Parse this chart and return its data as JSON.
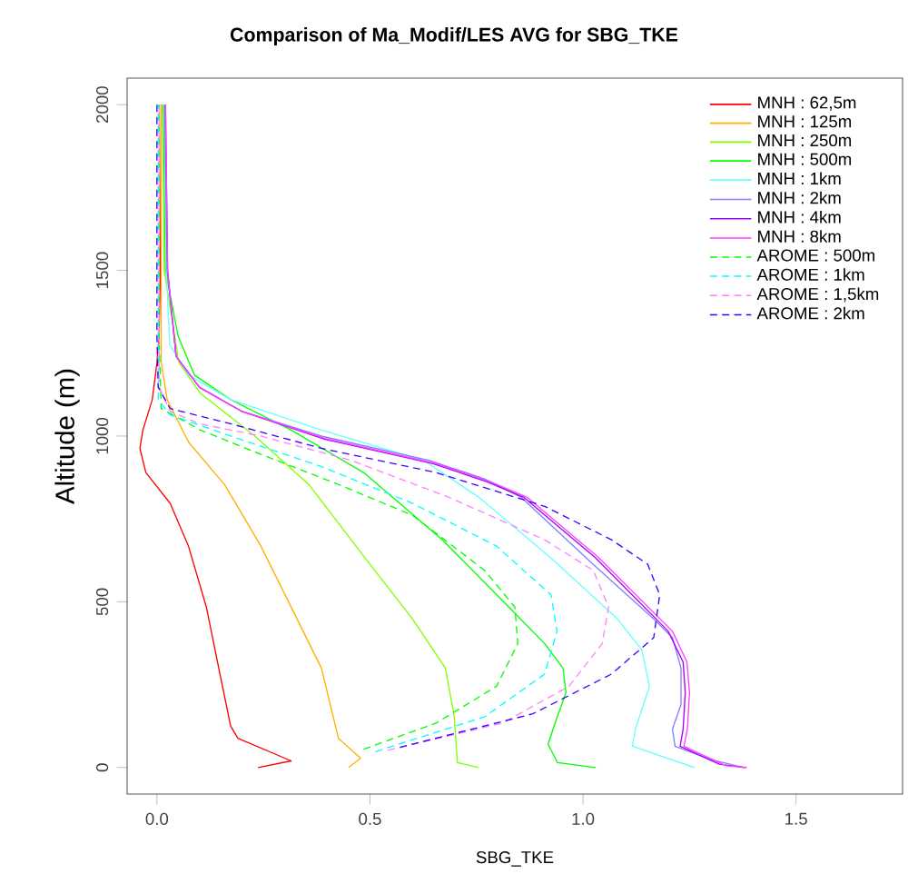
{
  "chart_data": {
    "type": "line",
    "title": "Comparison of Ma_Modif/LES AVG  for SBG_TKE",
    "xlabel": "SBG_TKE",
    "ylabel": "Altitude (m)",
    "xlim": [
      -0.07,
      1.75
    ],
    "ylim": [
      -80,
      2080
    ],
    "xticks": [
      {
        "value": 0,
        "label": "0.0"
      },
      {
        "value": 0.5,
        "label": "0.5"
      },
      {
        "value": 1,
        "label": "1.0"
      },
      {
        "value": 1.5,
        "label": "1.5"
      }
    ],
    "yticks": [
      0,
      500,
      1000,
      1500,
      2000
    ],
    "legend": "top right",
    "marker": "none",
    "grid": false,
    "series": [
      {
        "name": "MNH : 62,5m",
        "color": "#ff0000",
        "line_style": "solid",
        "x": [
          0.237,
          0.315,
          0.19,
          0.173,
          0.145,
          0.116,
          0.074,
          0.031,
          -0.026,
          -0.04,
          -0.033,
          -0.011,
          0.0,
          0.005,
          0.008,
          0.01
        ],
        "values": [
          0,
          20,
          88,
          125,
          300,
          484,
          668,
          797,
          890,
          963,
          1018,
          1110,
          1221,
          1300,
          1500,
          2000
        ]
      },
      {
        "name": "MNH : 125m",
        "color": "#ffb000",
        "line_style": "solid",
        "x": [
          0.45,
          0.478,
          0.426,
          0.386,
          0.315,
          0.244,
          0.159,
          0.074,
          0.024,
          0.01,
          0.01
        ],
        "values": [
          0,
          28,
          88,
          300,
          484,
          668,
          853,
          982,
          1110,
          1221,
          2000
        ]
      },
      {
        "name": "MNH : 250m",
        "color": "#80ff00",
        "line_style": "solid",
        "x": [
          0.755,
          0.705,
          0.698,
          0.677,
          0.6,
          0.5,
          0.357,
          0.23,
          0.102,
          0.052,
          0.045,
          0.017,
          0.013
        ],
        "values": [
          0,
          15,
          153,
          300,
          448,
          613,
          853,
          1000,
          1129,
          1221,
          1273,
          1500,
          2000
        ]
      },
      {
        "name": "MNH : 500m",
        "color": "#00ff00",
        "line_style": "solid",
        "x": [
          1.03,
          0.94,
          0.918,
          0.932,
          0.96,
          0.953,
          0.91,
          0.826,
          0.67,
          0.485,
          0.315,
          0.173,
          0.088,
          0.05,
          0.02,
          0.015
        ],
        "values": [
          0,
          15,
          70,
          125,
          226,
          300,
          374,
          484,
          687,
          890,
          1018,
          1110,
          1184,
          1300,
          1500,
          2000
        ]
      },
      {
        "name": "MNH : 1km",
        "color": "#66ffff",
        "line_style": "solid",
        "x": [
          1.262,
          1.116,
          1.123,
          1.156,
          1.138,
          1.081,
          0.925,
          0.755,
          0.627,
          0.386,
          0.173,
          0.074,
          0.03,
          0.022,
          0.017
        ],
        "values": [
          0,
          64,
          116,
          245,
          355,
          448,
          632,
          816,
          926,
          1018,
          1110,
          1184,
          1276,
          1500,
          2000
        ]
      },
      {
        "name": "MNH : 2km",
        "color": "#8080ff",
        "line_style": "solid",
        "x": [
          1.379,
          1.3,
          1.216,
          1.21,
          1.23,
          1.23,
          1.21,
          1.166,
          1.024,
          0.854,
          0.769,
          0.64,
          0.386,
          0.2,
          0.1,
          0.045,
          0.024,
          0.018
        ],
        "values": [
          0,
          24,
          64,
          116,
          190,
          300,
          392,
          448,
          613,
          816,
          871,
          926,
          1000,
          1074,
          1147,
          1240,
          1500,
          2000
        ]
      },
      {
        "name": "MNH : 4km",
        "color": "#a000ff",
        "line_style": "solid",
        "x": [
          1.38,
          1.32,
          1.228,
          1.235,
          1.24,
          1.235,
          1.2,
          1.03,
          0.86,
          0.775,
          0.648,
          0.393,
          0.2,
          0.1,
          0.045,
          0.025,
          0.02
        ],
        "values": [
          0,
          10,
          64,
          116,
          226,
          318,
          411,
          632,
          816,
          862,
          917,
          991,
          1074,
          1147,
          1240,
          1500,
          2000
        ]
      },
      {
        "name": "MNH : 8km",
        "color": "#ff40ff",
        "line_style": "solid",
        "x": [
          1.385,
          1.336,
          1.237,
          1.245,
          1.25,
          1.244,
          1.21,
          1.038,
          0.868,
          0.783,
          0.655,
          0.4,
          0.2,
          0.1,
          0.045,
          0.025,
          0.02
        ],
        "values": [
          0,
          5,
          64,
          116,
          226,
          318,
          411,
          632,
          816,
          862,
          917,
          991,
          1074,
          1147,
          1240,
          1500,
          2000
        ]
      },
      {
        "name": "AROME : 500m",
        "color": "#00ff00",
        "line_style": "dashed",
        "x": [
          0.485,
          0.655,
          0.797,
          0.847,
          0.84,
          0.769,
          0.6,
          0.428,
          0.244,
          0.102,
          0.01,
          0.005,
          0.005
        ],
        "values": [
          55,
          134,
          245,
          374,
          484,
          595,
          761,
          853,
          945,
          1018,
          1083,
          1300,
          2000
        ]
      },
      {
        "name": "AROME : 1km",
        "color": "#00ffff",
        "line_style": "dashed",
        "x": [
          0.513,
          0.769,
          0.91,
          0.939,
          0.925,
          0.797,
          0.6,
          0.386,
          0.173,
          0.031,
          0.003,
          0.003
        ],
        "values": [
          48,
          153,
          282,
          411,
          521,
          668,
          797,
          908,
          1000,
          1064,
          1110,
          2000
        ]
      },
      {
        "name": "AROME : 1,5km",
        "color": "#ff80ff",
        "line_style": "dashed",
        "x": [
          0.542,
          0.811,
          0.967,
          1.045,
          1.06,
          1.024,
          0.91,
          0.684,
          0.457,
          0.244,
          0.1,
          0.031,
          0.005,
          0.005
        ],
        "values": [
          52,
          134,
          245,
          374,
          484,
          595,
          687,
          816,
          926,
          1000,
          1037,
          1074,
          1150,
          2000
        ]
      },
      {
        "name": "AROME : 2km",
        "color": "#4000ff",
        "line_style": "dashed",
        "x": [
          0.57,
          0.882,
          1.067,
          1.166,
          1.18,
          1.152,
          1.067,
          0.91,
          0.655,
          0.386,
          0.173,
          0.031,
          0.003,
          0.0,
          0.0
        ],
        "values": [
          61,
          162,
          282,
          392,
          521,
          613,
          687,
          788,
          890,
          963,
          1037,
          1083,
          1147,
          1300,
          2000
        ]
      }
    ]
  }
}
